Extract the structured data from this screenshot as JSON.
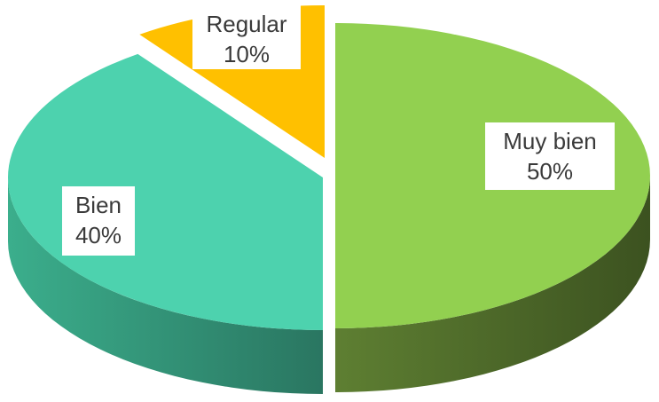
{
  "chart_data": {
    "type": "pie",
    "style": "3d-exploded",
    "slices": [
      {
        "label": "Muy bien",
        "percent_text": "50%",
        "value": 50,
        "color": "#92D050",
        "side_color": "#4E6B2A"
      },
      {
        "label": "Bien",
        "percent_text": "40%",
        "value": 40,
        "color": "#4DD2AE",
        "side_color": "#2F8F76"
      },
      {
        "label": "Regular",
        "percent_text": "10%",
        "value": 10,
        "color": "#FFC000",
        "side_color": "#7A5C12"
      }
    ]
  }
}
